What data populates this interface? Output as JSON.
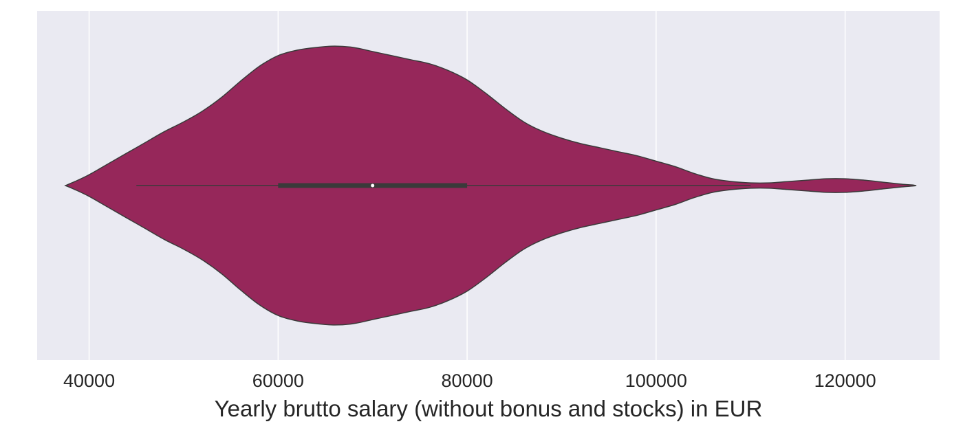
{
  "chart_data": {
    "type": "violin",
    "xlabel": "Yearly brutto salary (without bonus and stocks) in EUR",
    "ylabel": "",
    "xlim": [
      34500,
      130000
    ],
    "xticks": [
      40000,
      60000,
      80000,
      100000,
      120000
    ],
    "tick_labels": [
      "40000",
      "60000",
      "80000",
      "100000",
      "120000"
    ],
    "grid": true,
    "violin_color": "#96275a",
    "edge_color": "#3a3a3a",
    "background_color": "#eaeaf2",
    "grid_color": "#ffffff",
    "density_profile": {
      "x": [
        37500,
        38500,
        40000,
        42000,
        44000,
        46000,
        48000,
        50000,
        52000,
        54000,
        56000,
        58000,
        60000,
        62000,
        64000,
        66000,
        68000,
        70000,
        72000,
        74000,
        76000,
        78000,
        80000,
        82000,
        84000,
        86000,
        88000,
        90000,
        92000,
        94000,
        96000,
        98000,
        100000,
        102000,
        104000,
        106000,
        108000,
        110000,
        112000,
        114000,
        116000,
        118000,
        120000,
        122000,
        124000,
        126000,
        127500
      ],
      "half_width": [
        0.0,
        0.03,
        0.08,
        0.16,
        0.24,
        0.32,
        0.4,
        0.47,
        0.55,
        0.65,
        0.77,
        0.88,
        0.96,
        1.0,
        1.02,
        1.03,
        1.02,
        0.99,
        0.96,
        0.93,
        0.9,
        0.85,
        0.78,
        0.68,
        0.57,
        0.47,
        0.4,
        0.35,
        0.31,
        0.28,
        0.25,
        0.22,
        0.18,
        0.14,
        0.09,
        0.05,
        0.03,
        0.02,
        0.02,
        0.03,
        0.04,
        0.05,
        0.05,
        0.04,
        0.025,
        0.01,
        0.0
      ]
    },
    "box": {
      "whisker_low": 45000,
      "q1": 60000,
      "median": 70000,
      "q3": 80000,
      "whisker_high": 110000
    }
  }
}
